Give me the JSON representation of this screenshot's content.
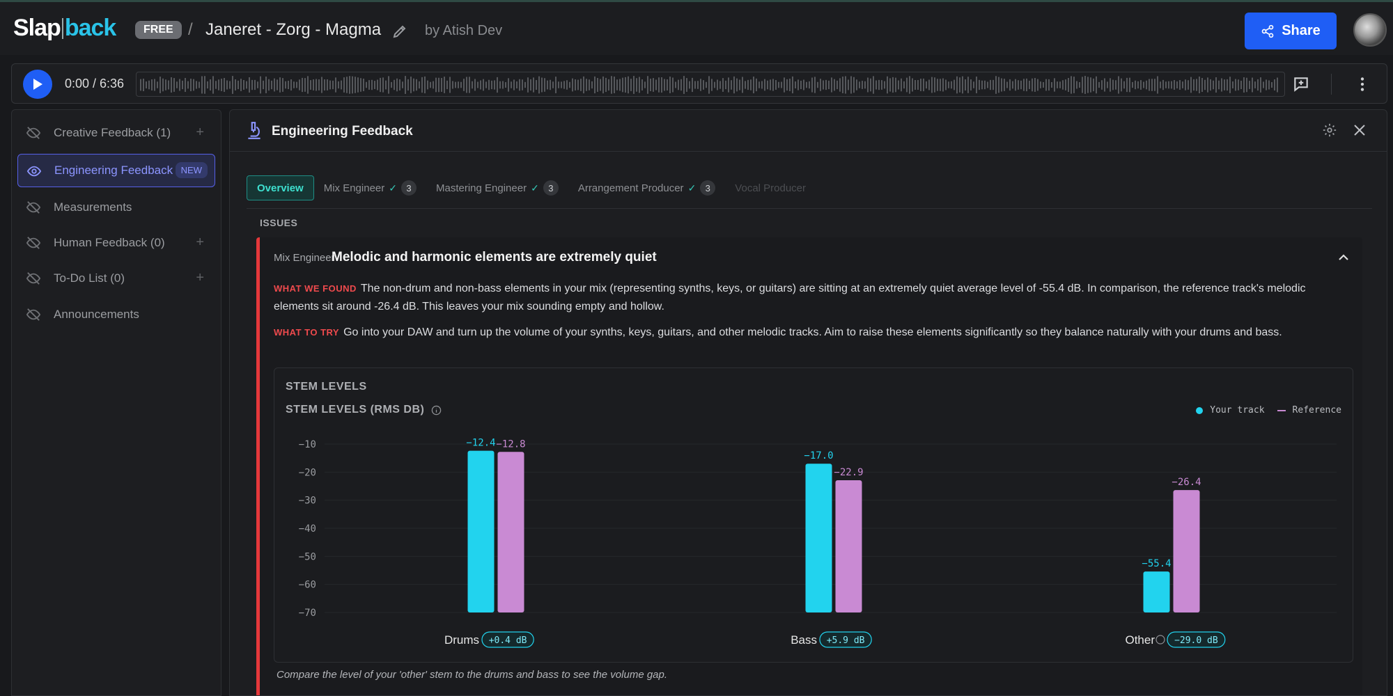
{
  "header": {
    "logo_left": "Slap",
    "logo_right": "back",
    "plan_badge": "FREE",
    "breadcrumb_sep": "/",
    "song_title": "Janeret - Zorg - Magma",
    "by_line": "by Atish Dev",
    "share_label": "Share"
  },
  "player": {
    "time": "0:00 / 6:36",
    "progress": 0
  },
  "sidebar": {
    "items": [
      {
        "label": "Creative Feedback (1)",
        "icon": "eye-off-icon",
        "has_add": true
      },
      {
        "label": "Engineering Feedback",
        "icon": "eye-icon",
        "badge": "NEW",
        "active": true
      },
      {
        "label": "Measurements",
        "icon": "eye-off-icon"
      },
      {
        "label": "Human Feedback (0)",
        "icon": "eye-off-icon",
        "has_add": true
      },
      {
        "label": "To-Do List (0)",
        "icon": "eye-off-icon",
        "has_add": true
      },
      {
        "label": "Announcements",
        "icon": "eye-off-icon"
      }
    ],
    "add_symbol": "+"
  },
  "panel": {
    "title": "Engineering Feedback",
    "tabs": [
      {
        "label": "Overview",
        "active": true
      },
      {
        "label": "Mix Engineer",
        "check": "✓",
        "count": "3"
      },
      {
        "label": "Mastering Engineer",
        "check": "✓",
        "count": "3"
      },
      {
        "label": "Arrangement Producer",
        "check": "✓",
        "count": "3"
      },
      {
        "label": "Vocal Producer",
        "disabled": true
      }
    ],
    "issues_label": "ISSUES"
  },
  "issue": {
    "source": "Mix Engineer",
    "title": "Melodic and harmonic elements are extremely quiet",
    "found_tag": "WHAT WE FOUND",
    "found_text": "The non-drum and non-bass elements in your mix (representing synths, keys, or guitars) are sitting at an extremely quiet average level of -55.4 dB. In comparison, the reference track's melodic elements sit around -26.4 dB. This leaves your mix sounding empty and hollow.",
    "try_tag": "WHAT TO TRY",
    "try_text": "Go into your DAW and turn up the volume of your synths, keys, guitars, and other melodic tracks. Aim to raise these elements significantly so they balance naturally with your drums and bass.",
    "caption": "Compare the level of your 'other' stem to the drums and bass to see the volume gap."
  },
  "chart_data": {
    "type": "bar",
    "section_title": "STEM LEVELS",
    "title": "STEM LEVELS (RMS DB)",
    "categories": [
      "Drums",
      "Bass",
      "Other"
    ],
    "series": [
      {
        "name": "Your track",
        "values": [
          -12.4,
          -17.0,
          -55.4
        ],
        "color": "#22d3ee"
      },
      {
        "name": "Reference",
        "values": [
          -12.8,
          -22.9,
          -26.4
        ],
        "color": "#c98ad3"
      }
    ],
    "value_labels": {
      "Your track": [
        "-12.4",
        "-17.0",
        "-55.4"
      ],
      "Reference": [
        "-12.8",
        "-22.9",
        "-26.4"
      ]
    },
    "deltas": [
      "+0.4 dB",
      "+5.9 dB",
      "-29.0 dB"
    ],
    "yticks": [
      -10,
      -20,
      -30,
      -40,
      -50,
      -60,
      -70
    ],
    "ylim": [
      -70,
      -10
    ],
    "legend_position": "top-right",
    "grid": true
  },
  "colors": {
    "accent": "#1f5ef5",
    "teal": "#22d3ee",
    "pink": "#c98ad3",
    "issue_red": "#e5383b"
  }
}
